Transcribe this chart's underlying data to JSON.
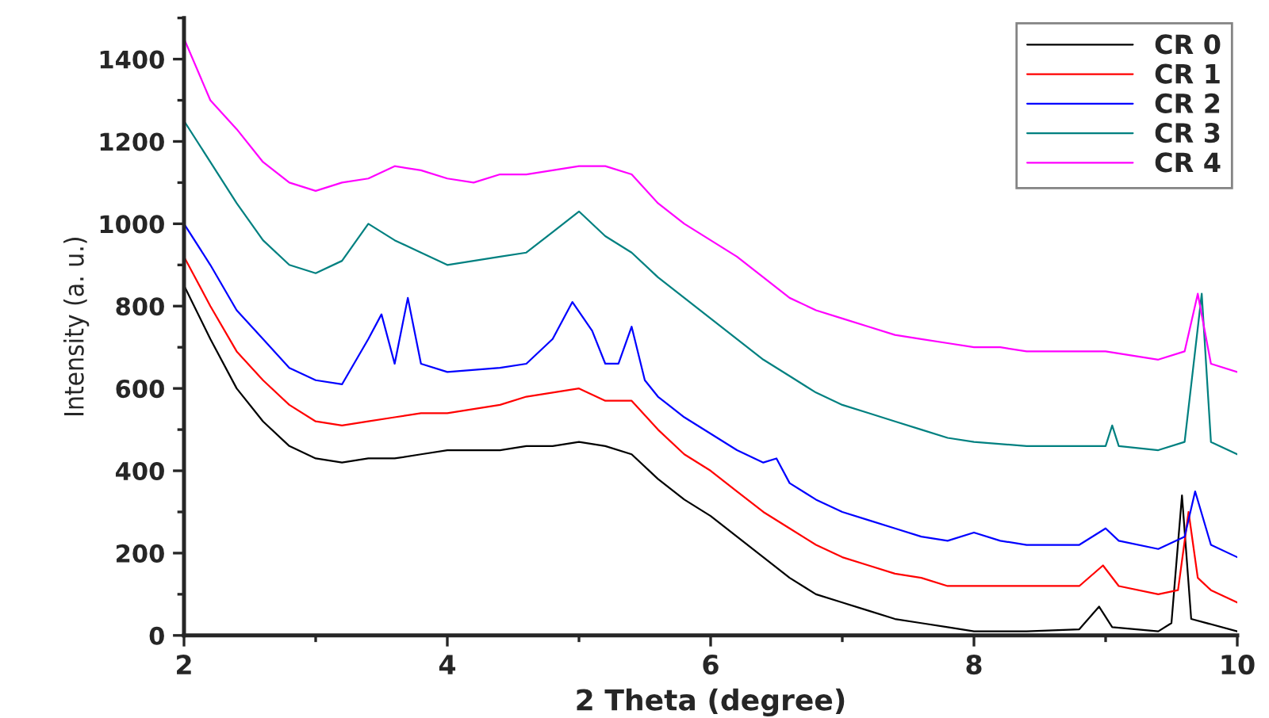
{
  "chart_data": {
    "type": "line",
    "xlabel": "2 Theta (degree)",
    "ylabel": "Intensity (a. u.)",
    "xlim": [
      2,
      10
    ],
    "ylim": [
      0,
      1500
    ],
    "xticks": [
      2,
      4,
      6,
      8,
      10
    ],
    "yticks": [
      0,
      200,
      400,
      600,
      800,
      1000,
      1200,
      1400
    ],
    "grid": false,
    "legend": "top right",
    "marker": "none",
    "line_style": "solid",
    "series": [
      {
        "name": "CR 0",
        "color": "#000000",
        "x": [
          2.0,
          2.2,
          2.4,
          2.6,
          2.8,
          3.0,
          3.2,
          3.4,
          3.6,
          3.8,
          4.0,
          4.4,
          4.6,
          4.8,
          5.0,
          5.2,
          5.4,
          5.6,
          5.8,
          6.0,
          6.2,
          6.4,
          6.6,
          6.8,
          7.0,
          7.2,
          7.4,
          7.6,
          7.8,
          8.0,
          8.4,
          8.8,
          8.95,
          9.05,
          9.4,
          9.5,
          9.58,
          9.65,
          10.0
        ],
        "values": [
          850,
          720,
          600,
          520,
          460,
          430,
          420,
          430,
          430,
          440,
          450,
          450,
          460,
          460,
          470,
          460,
          440,
          380,
          330,
          290,
          240,
          190,
          140,
          100,
          80,
          60,
          40,
          30,
          20,
          10,
          10,
          15,
          70,
          20,
          10,
          30,
          340,
          40,
          10
        ]
      },
      {
        "name": "CR 1",
        "color": "#ff0000",
        "x": [
          2.0,
          2.2,
          2.4,
          2.6,
          2.8,
          3.0,
          3.2,
          3.4,
          3.6,
          3.8,
          4.0,
          4.4,
          4.6,
          4.8,
          5.0,
          5.2,
          5.4,
          5.6,
          5.8,
          6.0,
          6.2,
          6.4,
          6.6,
          6.8,
          7.0,
          7.2,
          7.4,
          7.6,
          7.8,
          8.0,
          8.4,
          8.8,
          8.98,
          9.1,
          9.4,
          9.55,
          9.63,
          9.7,
          9.8,
          10.0
        ],
        "values": [
          920,
          800,
          690,
          620,
          560,
          520,
          510,
          520,
          530,
          540,
          540,
          560,
          580,
          590,
          600,
          570,
          570,
          500,
          440,
          400,
          350,
          300,
          260,
          220,
          190,
          170,
          150,
          140,
          120,
          120,
          120,
          120,
          170,
          120,
          100,
          110,
          300,
          140,
          110,
          80
        ]
      },
      {
        "name": "CR 2",
        "color": "#0000ff",
        "x": [
          2.0,
          2.2,
          2.4,
          2.6,
          2.8,
          3.0,
          3.2,
          3.4,
          3.5,
          3.6,
          3.7,
          3.8,
          4.0,
          4.4,
          4.6,
          4.8,
          4.95,
          5.1,
          5.2,
          5.3,
          5.4,
          5.5,
          5.6,
          5.8,
          6.0,
          6.2,
          6.4,
          6.5,
          6.6,
          6.8,
          7.0,
          7.2,
          7.4,
          7.6,
          7.8,
          8.0,
          8.2,
          8.4,
          8.8,
          9.0,
          9.1,
          9.4,
          9.6,
          9.68,
          9.8,
          10.0
        ],
        "values": [
          1000,
          900,
          790,
          720,
          650,
          620,
          610,
          720,
          780,
          660,
          820,
          660,
          640,
          650,
          660,
          720,
          810,
          740,
          660,
          660,
          750,
          620,
          580,
          530,
          490,
          450,
          420,
          430,
          370,
          330,
          300,
          280,
          260,
          240,
          230,
          250,
          230,
          220,
          220,
          260,
          230,
          210,
          240,
          350,
          220,
          190
        ]
      },
      {
        "name": "CR 3",
        "color": "#008080",
        "x": [
          2.0,
          2.2,
          2.4,
          2.6,
          2.8,
          3.0,
          3.2,
          3.4,
          3.6,
          3.8,
          4.0,
          4.2,
          4.4,
          4.6,
          4.8,
          5.0,
          5.2,
          5.4,
          5.6,
          5.8,
          6.0,
          6.2,
          6.4,
          6.6,
          6.8,
          7.0,
          7.2,
          7.4,
          7.6,
          7.8,
          8.0,
          8.4,
          8.8,
          9.0,
          9.05,
          9.1,
          9.4,
          9.6,
          9.73,
          9.8,
          10.0
        ],
        "values": [
          1250,
          1150,
          1050,
          960,
          900,
          880,
          910,
          1000,
          960,
          930,
          900,
          910,
          920,
          930,
          980,
          1030,
          970,
          930,
          870,
          820,
          770,
          720,
          670,
          630,
          590,
          560,
          540,
          520,
          500,
          480,
          470,
          460,
          460,
          460,
          510,
          460,
          450,
          470,
          830,
          470,
          440
        ]
      },
      {
        "name": "CR 4",
        "color": "#ff00ff",
        "x": [
          2.0,
          2.2,
          2.4,
          2.6,
          2.8,
          3.0,
          3.2,
          3.4,
          3.6,
          3.8,
          4.0,
          4.2,
          4.4,
          4.6,
          4.8,
          5.0,
          5.2,
          5.4,
          5.6,
          5.8,
          6.0,
          6.2,
          6.4,
          6.6,
          6.8,
          7.0,
          7.2,
          7.4,
          7.6,
          7.8,
          8.0,
          8.2,
          8.4,
          8.6,
          8.8,
          9.0,
          9.2,
          9.4,
          9.6,
          9.7,
          9.8,
          10.0
        ],
        "values": [
          1450,
          1300,
          1230,
          1150,
          1100,
          1080,
          1100,
          1110,
          1140,
          1130,
          1110,
          1100,
          1120,
          1120,
          1130,
          1140,
          1140,
          1120,
          1050,
          1000,
          960,
          920,
          870,
          820,
          790,
          770,
          750,
          730,
          720,
          710,
          700,
          700,
          690,
          690,
          690,
          690,
          680,
          670,
          690,
          830,
          660,
          640
        ]
      }
    ]
  }
}
